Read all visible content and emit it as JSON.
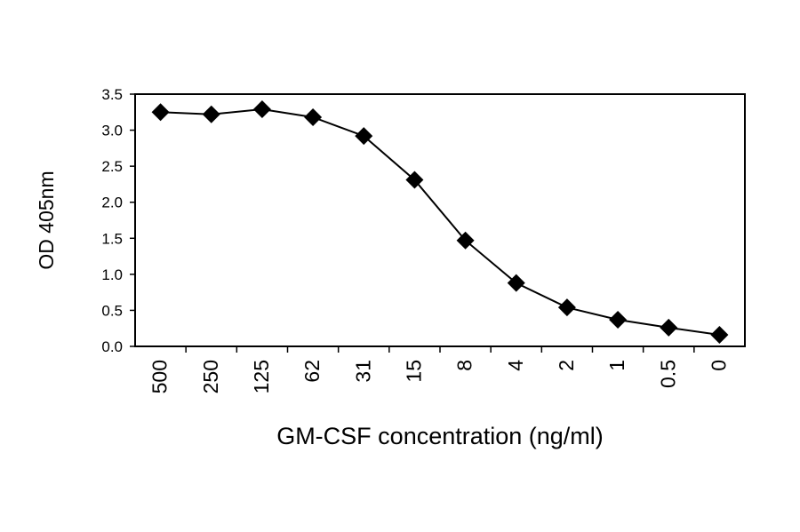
{
  "chart_data": {
    "type": "line",
    "title": "",
    "xlabel": "GM-CSF concentration (ng/ml)",
    "ylabel": "OD 405nm",
    "categories": [
      "500",
      "250",
      "125",
      "62",
      "31",
      "15",
      "8",
      "4",
      "2",
      "1",
      "0.5",
      "0"
    ],
    "series": [
      {
        "values": [
          3.25,
          3.22,
          3.29,
          3.18,
          2.92,
          2.31,
          1.47,
          0.88,
          0.54,
          0.37,
          0.26,
          0.16
        ]
      }
    ],
    "ylim": [
      0,
      3.5
    ],
    "yticks": [
      "0.0",
      "0.5",
      "1.0",
      "1.5",
      "2.0",
      "2.5",
      "3.0",
      "3.5"
    ],
    "grid": false,
    "marker": "diamond",
    "colors": {
      "line": "#000000",
      "marker": "#000000"
    }
  }
}
